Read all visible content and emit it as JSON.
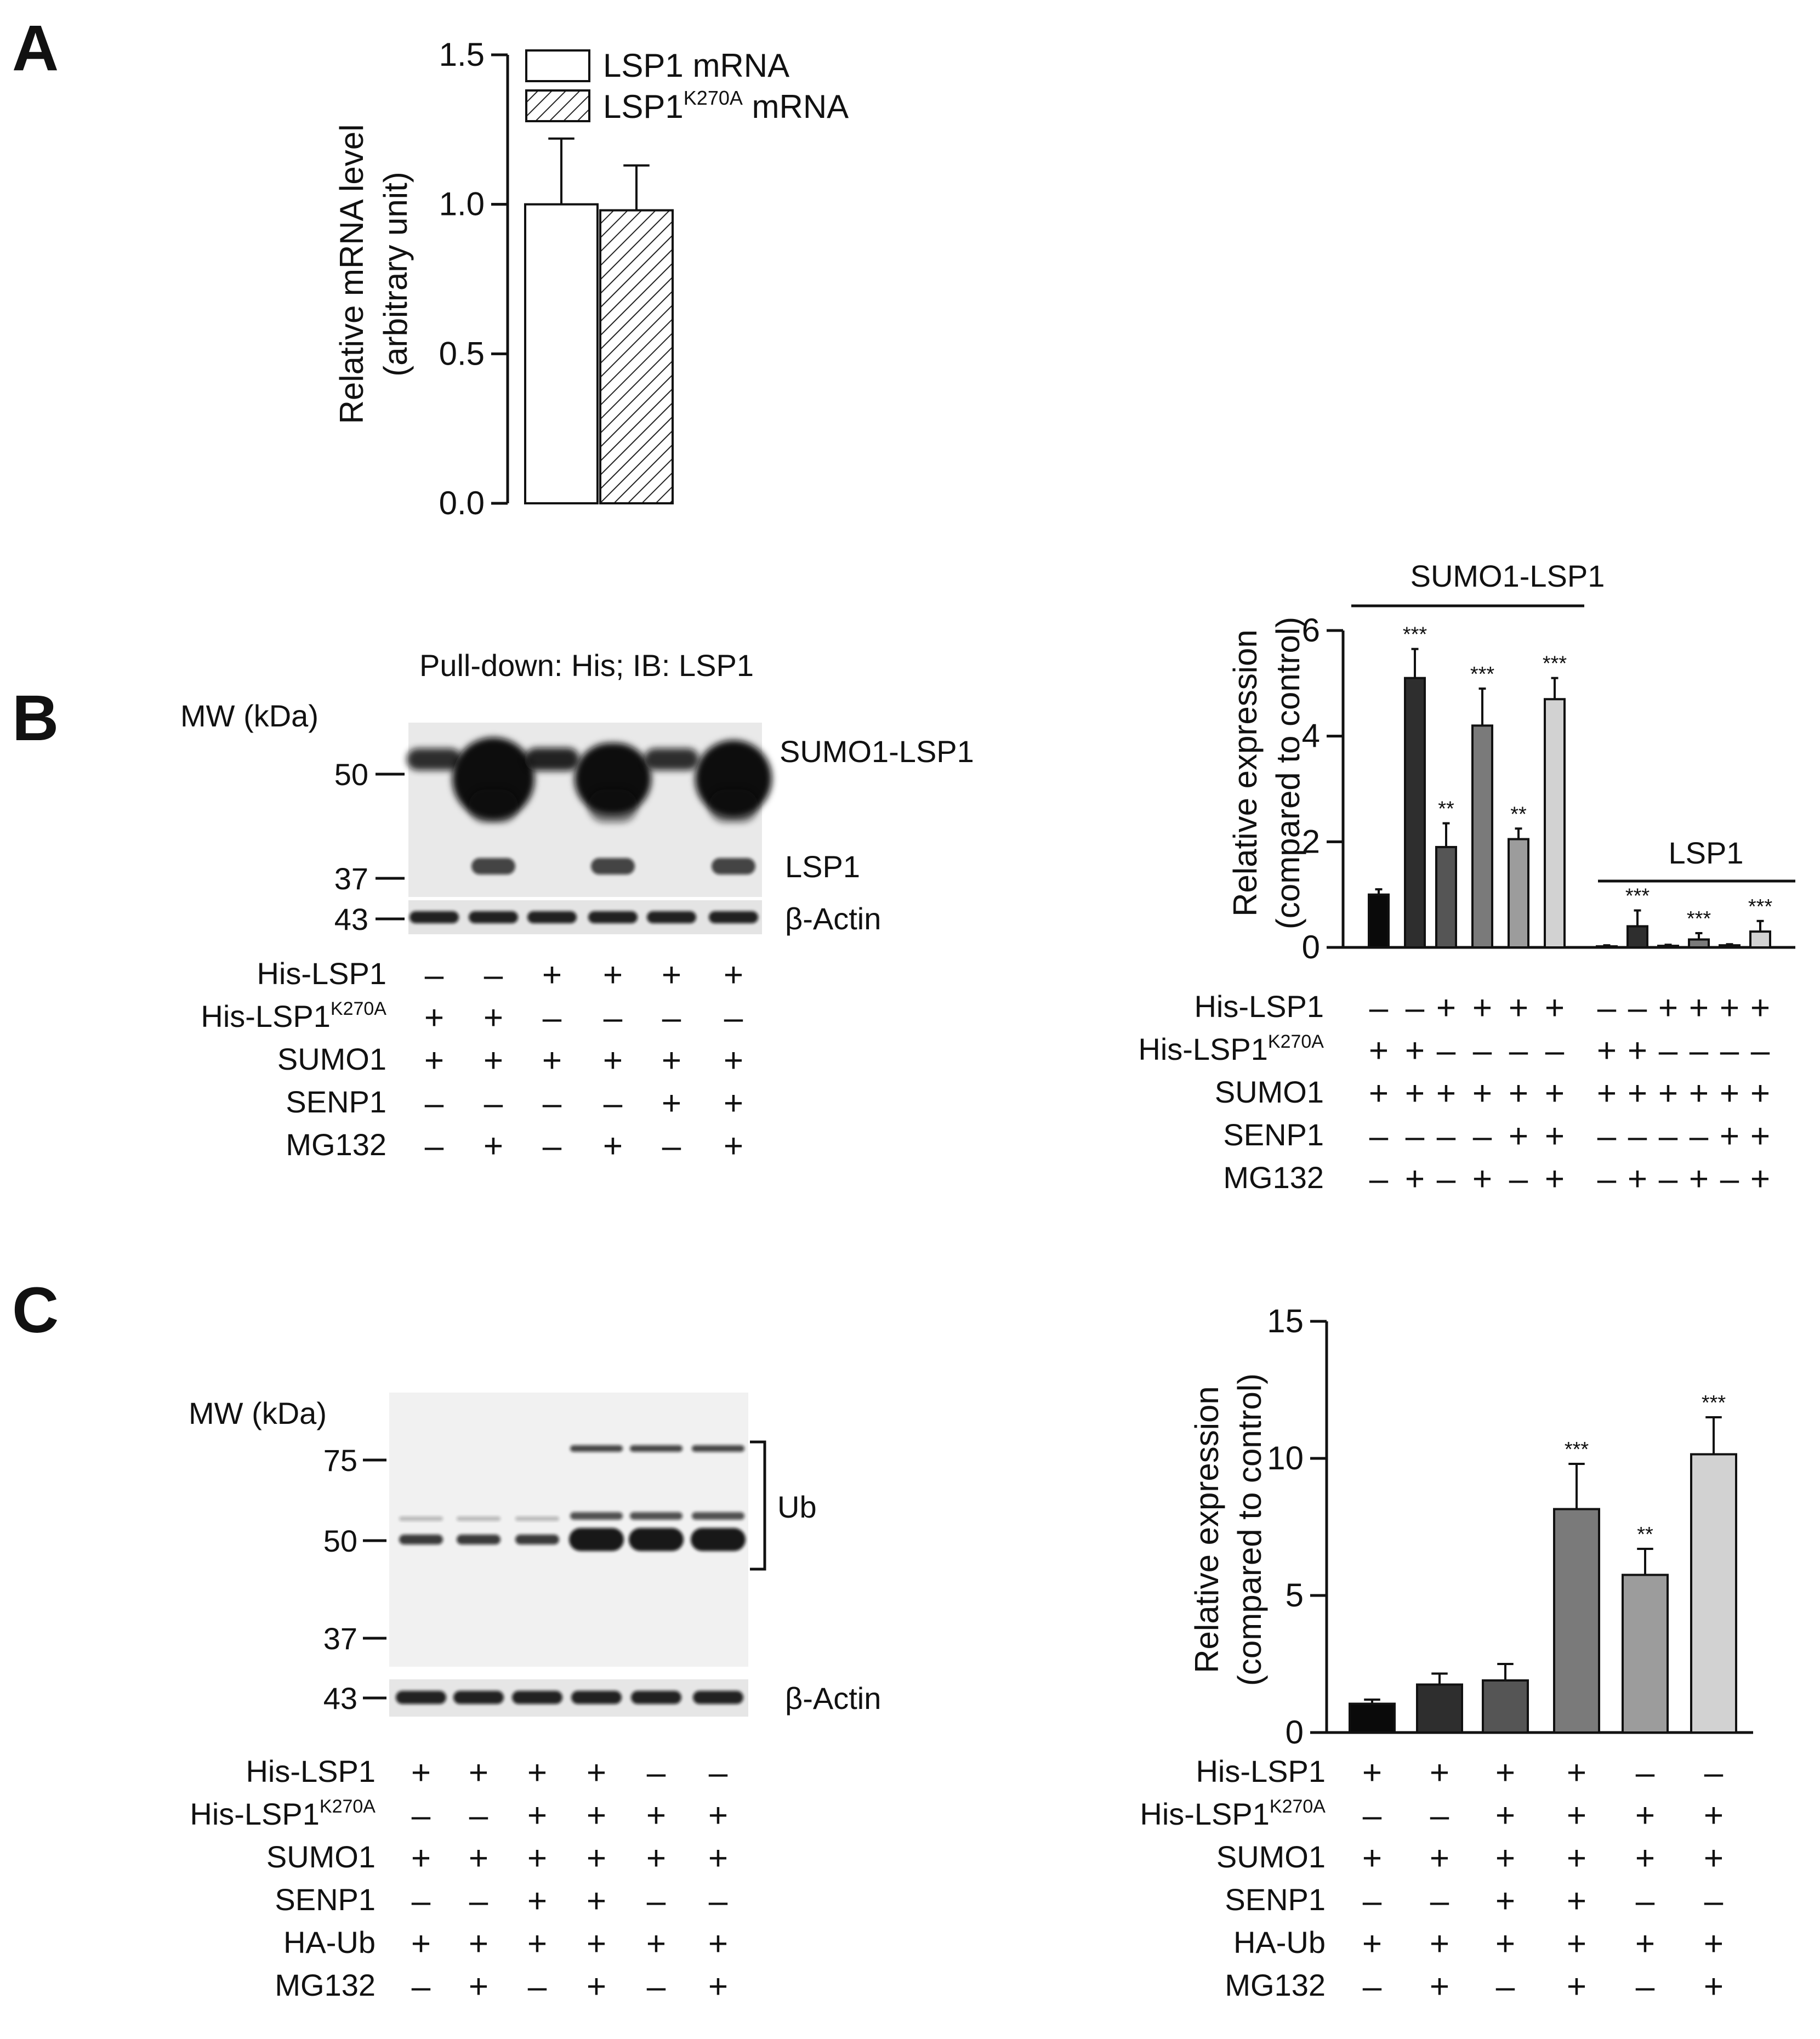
{
  "panelA": {
    "letter": "A",
    "chart_data": {
      "type": "bar",
      "categories": [
        "LSP1 mRNA",
        "LSP1K270A mRNA"
      ],
      "values": [
        1.0,
        0.98
      ],
      "errors": [
        0.22,
        0.15
      ],
      "legend": [
        {
          "label": "LSP1 mRNA",
          "pattern": "open"
        },
        {
          "label_main": "LSP1",
          "label_sup": "K270A",
          "label_tail": " mRNA",
          "pattern": "hatched"
        }
      ],
      "ylabel_line1": "Relative mRNA level",
      "ylabel_line2": "(arbitrary unit)",
      "yticks": [
        "0.0",
        "0.5",
        "1.0",
        "1.5"
      ],
      "ylim": [
        0,
        1.5
      ],
      "legend_position": "top",
      "grid": false
    }
  },
  "panelB": {
    "letter": "B",
    "blot": {
      "title": "Pull-down: His; IB: LSP1",
      "mw_header": "MW (kDa)",
      "markers": [
        "50",
        "37",
        "43"
      ],
      "band_labels": [
        "SUMO1-LSP1",
        "LSP1",
        "β-Actin"
      ],
      "condition_rows": [
        {
          "main": "His-LSP1",
          "sup": "",
          "signs": [
            "-",
            "-",
            "+",
            "+",
            "+",
            "+"
          ]
        },
        {
          "main": "His-LSP1",
          "sup": "K270A",
          "signs": [
            "+",
            "+",
            "-",
            "-",
            "-",
            "-"
          ]
        },
        {
          "main": "SUMO1",
          "sup": "",
          "signs": [
            "+",
            "+",
            "+",
            "+",
            "+",
            "+"
          ]
        },
        {
          "main": "SENP1",
          "sup": "",
          "signs": [
            "-",
            "-",
            "-",
            "-",
            "+",
            "+"
          ]
        },
        {
          "main": "MG132",
          "sup": "",
          "signs": [
            "-",
            "+",
            "-",
            "+",
            "-",
            "+"
          ]
        }
      ]
    },
    "chart_data": {
      "type": "bar",
      "groups": [
        "SUMO1-LSP1",
        "LSP1"
      ],
      "series": [
        {
          "group": "SUMO1-LSP1",
          "values": [
            1.0,
            5.1,
            1.9,
            4.2,
            2.05,
            4.7
          ],
          "errors": [
            0.1,
            0.55,
            0.45,
            0.7,
            0.2,
            0.4
          ],
          "sig": [
            "",
            "***",
            "**",
            "***",
            "**",
            "***"
          ]
        },
        {
          "group": "LSP1",
          "values": [
            0.02,
            0.4,
            0.03,
            0.15,
            0.04,
            0.3
          ],
          "errors": [
            0.02,
            0.3,
            0.02,
            0.12,
            0.02,
            0.2
          ],
          "sig": [
            "",
            "***",
            "",
            "***",
            "",
            "***"
          ]
        }
      ],
      "bar_colors": [
        "#0a0a0a",
        "#2e2e2e",
        "#555555",
        "#7a7a7a",
        "#9c9c9c",
        "#d2d2d2"
      ],
      "ylabel_line1": "Relative expression",
      "ylabel_line2": "(compared to control)",
      "yticks": [
        "0",
        "2",
        "4",
        "6"
      ],
      "ylim": [
        0,
        6
      ],
      "condition_rows": [
        {
          "main": "His-LSP1",
          "sup": "",
          "signs": [
            "-",
            "-",
            "+",
            "+",
            "+",
            "+",
            "-",
            "-",
            "+",
            "+",
            "+",
            "+"
          ]
        },
        {
          "main": "His-LSP1",
          "sup": "K270A",
          "signs": [
            "+",
            "+",
            "-",
            "-",
            "-",
            "-",
            "+",
            "+",
            "-",
            "-",
            "-",
            "-"
          ]
        },
        {
          "main": "SUMO1",
          "sup": "",
          "signs": [
            "+",
            "+",
            "+",
            "+",
            "+",
            "+",
            "+",
            "+",
            "+",
            "+",
            "+",
            "+"
          ]
        },
        {
          "main": "SENP1",
          "sup": "",
          "signs": [
            "-",
            "-",
            "-",
            "-",
            "+",
            "+",
            "-",
            "-",
            "-",
            "-",
            "+",
            "+"
          ]
        },
        {
          "main": "MG132",
          "sup": "",
          "signs": [
            "-",
            "+",
            "-",
            "+",
            "-",
            "+",
            "-",
            "+",
            "-",
            "+",
            "-",
            "+"
          ]
        }
      ]
    }
  },
  "panelC": {
    "letter": "C",
    "blot": {
      "mw_header": "MW (kDa)",
      "markers": [
        "75",
        "50",
        "37",
        "43"
      ],
      "band_labels": [
        "Ub",
        "β-Actin"
      ],
      "condition_rows": [
        {
          "main": "His-LSP1",
          "sup": "",
          "signs": [
            "+",
            "+",
            "+",
            "+",
            "-",
            "-"
          ]
        },
        {
          "main": "His-LSP1",
          "sup": "K270A",
          "signs": [
            "-",
            "-",
            "+",
            "+",
            "+",
            "+"
          ]
        },
        {
          "main": "SUMO1",
          "sup": "",
          "signs": [
            "+",
            "+",
            "+",
            "+",
            "+",
            "+"
          ]
        },
        {
          "main": "SENP1",
          "sup": "",
          "signs": [
            "-",
            "-",
            "+",
            "+",
            "-",
            "-"
          ]
        },
        {
          "main": "HA-Ub",
          "sup": "",
          "signs": [
            "+",
            "+",
            "+",
            "+",
            "+",
            "+"
          ]
        },
        {
          "main": "MG132",
          "sup": "",
          "signs": [
            "-",
            "+",
            "-",
            "+",
            "-",
            "+"
          ]
        }
      ]
    },
    "chart_data": {
      "type": "bar",
      "values": [
        1.05,
        1.75,
        1.9,
        8.15,
        5.75,
        10.15
      ],
      "errors": [
        0.15,
        0.4,
        0.6,
        1.65,
        0.95,
        1.35
      ],
      "sig": [
        "",
        "",
        "",
        "***",
        "**",
        "***"
      ],
      "bar_colors": [
        "#0a0a0a",
        "#2e2e2e",
        "#555555",
        "#7a7a7a",
        "#9c9c9c",
        "#d2d2d2"
      ],
      "ylabel_line1": "Relative expression",
      "ylabel_line2": "(compared to control)",
      "yticks": [
        "0",
        "5",
        "10",
        "15"
      ],
      "ylim": [
        0,
        15
      ],
      "condition_rows": [
        {
          "main": "His-LSP1",
          "sup": "",
          "signs": [
            "+",
            "+",
            "+",
            "+",
            "-",
            "-"
          ]
        },
        {
          "main": "His-LSP1",
          "sup": "K270A",
          "signs": [
            "-",
            "-",
            "+",
            "+",
            "+",
            "+"
          ]
        },
        {
          "main": "SUMO1",
          "sup": "",
          "signs": [
            "+",
            "+",
            "+",
            "+",
            "+",
            "+"
          ]
        },
        {
          "main": "SENP1",
          "sup": "",
          "signs": [
            "-",
            "-",
            "+",
            "+",
            "-",
            "-"
          ]
        },
        {
          "main": "HA-Ub",
          "sup": "",
          "signs": [
            "+",
            "+",
            "+",
            "+",
            "+",
            "+"
          ]
        },
        {
          "main": "MG132",
          "sup": "",
          "signs": [
            "-",
            "+",
            "-",
            "+",
            "-",
            "+"
          ]
        }
      ]
    }
  }
}
